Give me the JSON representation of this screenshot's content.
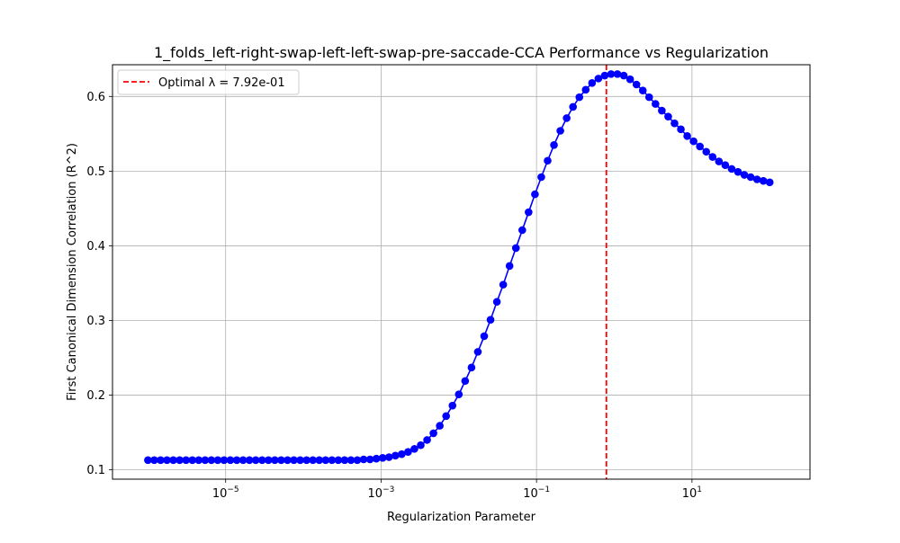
{
  "chart_data": {
    "type": "line",
    "title": "1_folds_left-right-swap-left-left-swap-pre-saccade-CCA Performance vs Regularization",
    "xlabel": "Regularization Parameter",
    "ylabel": "First Canonical Dimension Correlation (R^2)",
    "x_scale": "log",
    "xlim": [
      3.5e-07,
      330
    ],
    "ylim": [
      0.0875,
      0.6425
    ],
    "x_ticks": [
      {
        "value": 1e-05,
        "base": "10",
        "exp": "−5"
      },
      {
        "value": 0.001,
        "base": "10",
        "exp": "−3"
      },
      {
        "value": 0.1,
        "base": "10",
        "exp": "−1"
      },
      {
        "value": 10,
        "base": "10",
        "exp": "1"
      }
    ],
    "y_ticks": [
      {
        "value": 0.1,
        "label": "0.1"
      },
      {
        "value": 0.2,
        "label": "0.2"
      },
      {
        "value": 0.3,
        "label": "0.3"
      },
      {
        "value": 0.4,
        "label": "0.4"
      },
      {
        "value": 0.5,
        "label": "0.5"
      },
      {
        "value": 0.6,
        "label": "0.6"
      }
    ],
    "grid": true,
    "legend_position": "top-left",
    "series": [
      {
        "color": "#0000ff",
        "marker": "circle",
        "x_log10_start": -6,
        "x_log10_end": 2,
        "values": [
          0.113,
          0.113,
          0.113,
          0.113,
          0.113,
          0.113,
          0.113,
          0.113,
          0.113,
          0.113,
          0.113,
          0.113,
          0.113,
          0.113,
          0.113,
          0.113,
          0.113,
          0.113,
          0.113,
          0.113,
          0.113,
          0.113,
          0.113,
          0.113,
          0.113,
          0.113,
          0.113,
          0.113,
          0.113,
          0.113,
          0.113,
          0.113,
          0.113,
          0.113,
          0.114,
          0.114,
          0.115,
          0.116,
          0.117,
          0.119,
          0.121,
          0.124,
          0.128,
          0.133,
          0.14,
          0.149,
          0.159,
          0.172,
          0.186,
          0.201,
          0.219,
          0.237,
          0.258,
          0.279,
          0.301,
          0.325,
          0.348,
          0.373,
          0.397,
          0.421,
          0.445,
          0.469,
          0.492,
          0.514,
          0.535,
          0.554,
          0.571,
          0.586,
          0.599,
          0.609,
          0.618,
          0.624,
          0.628,
          0.63,
          0.63,
          0.628,
          0.623,
          0.616,
          0.608,
          0.599,
          0.59,
          0.581,
          0.573,
          0.564,
          0.556,
          0.547,
          0.54,
          0.533,
          0.526,
          0.519,
          0.513,
          0.508,
          0.503,
          0.499,
          0.495,
          0.492,
          0.489,
          0.487,
          0.485
        ]
      }
    ],
    "reference_line": {
      "x": 0.792,
      "color": "#ff0000",
      "label": "Optimal λ = 7.92e-01"
    }
  }
}
